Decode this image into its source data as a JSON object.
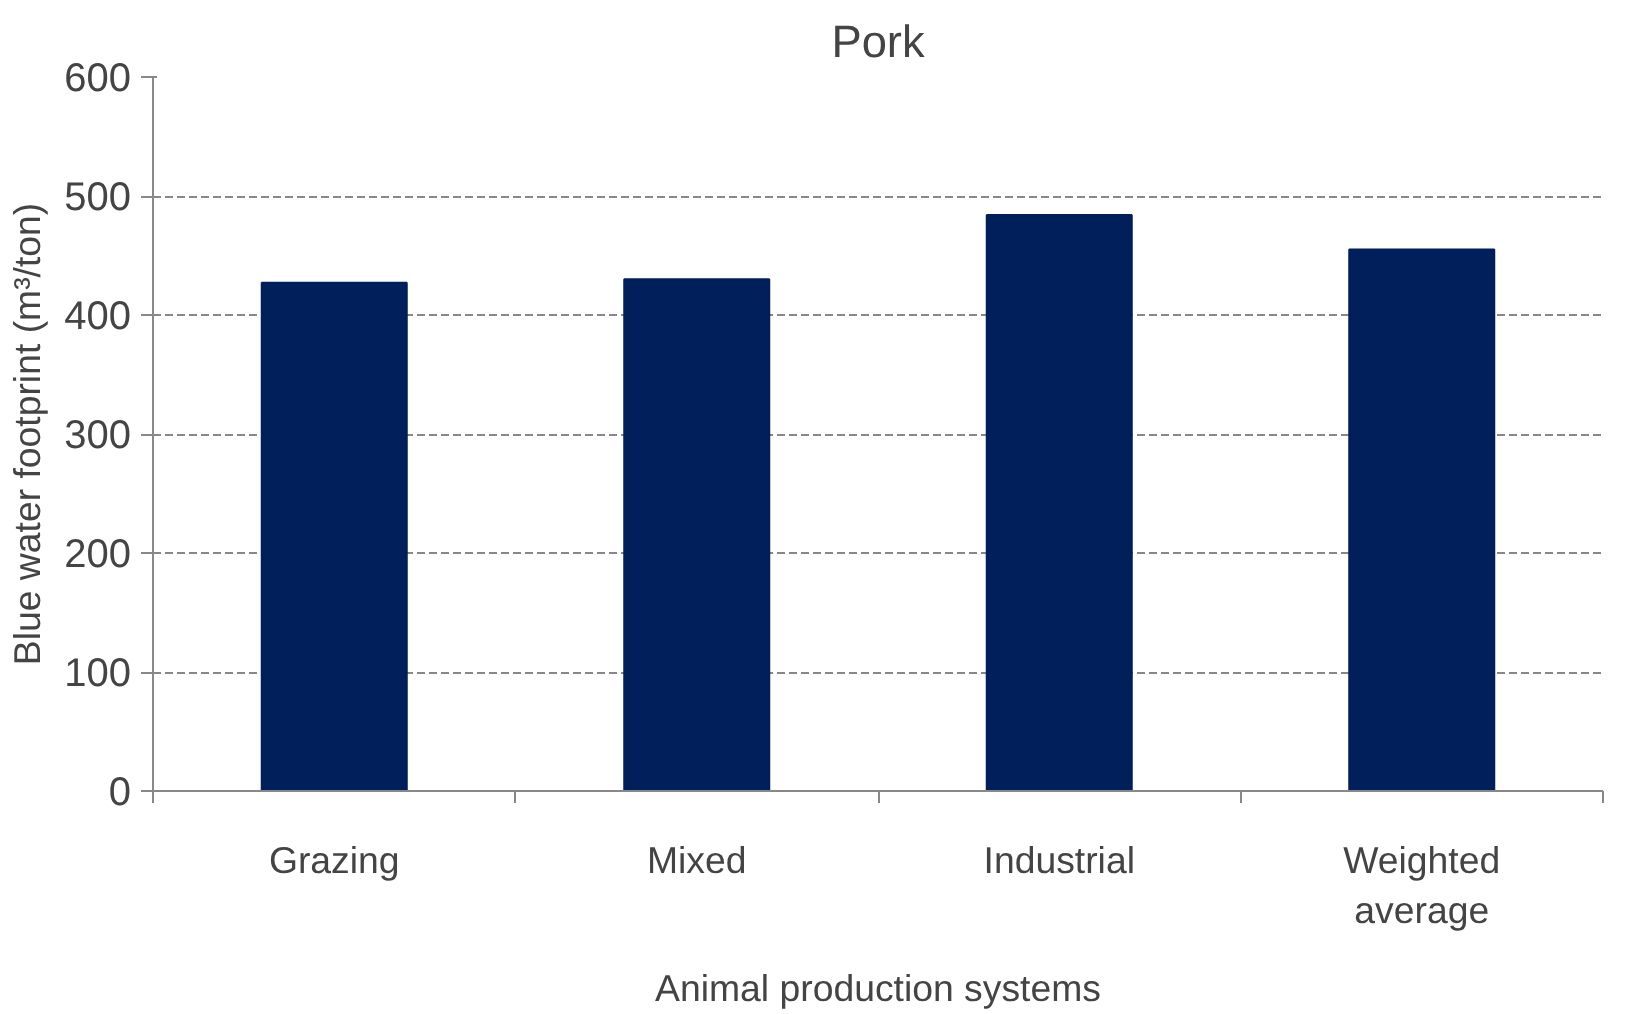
{
  "chart_data": {
    "type": "bar",
    "title": "Pork",
    "xlabel": "Animal production systems",
    "ylabel": "Blue water footprint (m³/ton)",
    "categories": [
      "Grazing",
      "Mixed",
      "Industrial",
      "Weighted average"
    ],
    "values": [
      427,
      430,
      484,
      455
    ],
    "color": "#001f5b",
    "ylim": [
      0,
      600
    ],
    "yticks": [
      0,
      100,
      200,
      300,
      400,
      500,
      600
    ],
    "grid": "y"
  }
}
